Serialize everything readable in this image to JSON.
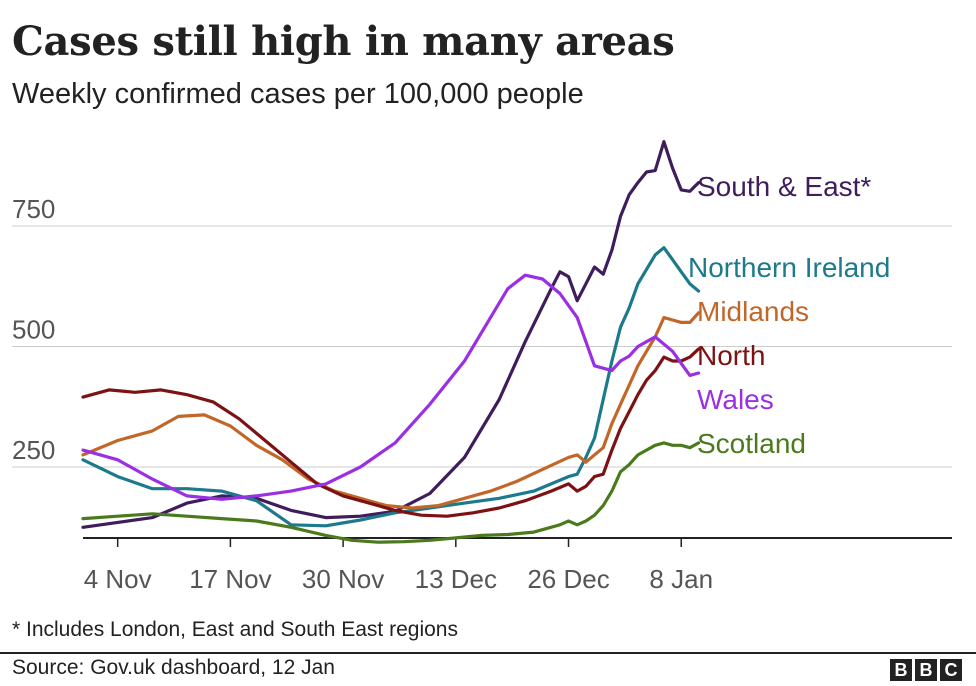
{
  "header": {
    "title": "Cases still high in many areas",
    "subtitle": "Weekly confirmed cases per 100,000 people"
  },
  "footer": {
    "footnote": "* Includes London, East and South East regions",
    "source": "Source: Gov.uk dashboard, 12 Jan",
    "logo_letters": [
      "B",
      "B",
      "C"
    ]
  },
  "chart_data": {
    "type": "line",
    "title": "Cases still high in many areas",
    "subtitle": "Weekly confirmed cases per 100,000 people",
    "xlabel": "",
    "ylabel": "",
    "x_range_days": [
      0,
      69
    ],
    "x_ticks": [
      {
        "day": 4,
        "label": "4 Nov"
      },
      {
        "day": 17,
        "label": "17 Nov"
      },
      {
        "day": 30,
        "label": "30 Nov"
      },
      {
        "day": 43,
        "label": "13 Dec"
      },
      {
        "day": 56,
        "label": "26 Dec"
      },
      {
        "day": 69,
        "label": "8 Jan"
      }
    ],
    "ylim": [
      100,
      950
    ],
    "y_ticks": [
      250,
      500,
      750
    ],
    "grid": true,
    "legend": "direct labels at line ends",
    "series": [
      {
        "name": "South & East*",
        "color": "#3f1d5c",
        "points": [
          [
            0,
            125
          ],
          [
            4,
            135
          ],
          [
            8,
            145
          ],
          [
            12,
            175
          ],
          [
            16,
            190
          ],
          [
            20,
            185
          ],
          [
            24,
            160
          ],
          [
            28,
            145
          ],
          [
            32,
            148
          ],
          [
            36,
            158
          ],
          [
            40,
            195
          ],
          [
            44,
            270
          ],
          [
            48,
            390
          ],
          [
            51,
            510
          ],
          [
            54,
            620
          ],
          [
            55,
            655
          ],
          [
            56,
            645
          ],
          [
            57,
            595
          ],
          [
            58,
            630
          ],
          [
            59,
            665
          ],
          [
            60,
            650
          ],
          [
            61,
            700
          ],
          [
            62,
            770
          ],
          [
            63,
            815
          ],
          [
            64,
            840
          ],
          [
            65,
            862
          ],
          [
            66,
            865
          ],
          [
            67,
            925
          ],
          [
            68,
            870
          ],
          [
            69,
            825
          ],
          [
            70,
            822
          ],
          [
            71,
            840
          ]
        ]
      },
      {
        "name": "Northern Ireland",
        "color": "#1d7a8c",
        "points": [
          [
            0,
            265
          ],
          [
            4,
            230
          ],
          [
            8,
            205
          ],
          [
            12,
            205
          ],
          [
            16,
            200
          ],
          [
            20,
            180
          ],
          [
            24,
            130
          ],
          [
            28,
            128
          ],
          [
            32,
            140
          ],
          [
            36,
            155
          ],
          [
            40,
            165
          ],
          [
            44,
            175
          ],
          [
            48,
            185
          ],
          [
            52,
            200
          ],
          [
            56,
            230
          ],
          [
            57,
            235
          ],
          [
            58,
            270
          ],
          [
            59,
            310
          ],
          [
            60,
            390
          ],
          [
            61,
            470
          ],
          [
            62,
            540
          ],
          [
            63,
            580
          ],
          [
            64,
            630
          ],
          [
            65,
            660
          ],
          [
            66,
            690
          ],
          [
            67,
            705
          ],
          [
            68,
            680
          ],
          [
            69,
            655
          ],
          [
            70,
            630
          ],
          [
            71,
            615
          ]
        ]
      },
      {
        "name": "Midlands",
        "color": "#c1672a",
        "points": [
          [
            0,
            275
          ],
          [
            4,
            305
          ],
          [
            8,
            325
          ],
          [
            11,
            355
          ],
          [
            14,
            358
          ],
          [
            17,
            335
          ],
          [
            20,
            295
          ],
          [
            23,
            265
          ],
          [
            26,
            225
          ],
          [
            29,
            200
          ],
          [
            32,
            185
          ],
          [
            35,
            170
          ],
          [
            38,
            165
          ],
          [
            41,
            170
          ],
          [
            44,
            185
          ],
          [
            47,
            200
          ],
          [
            50,
            220
          ],
          [
            53,
            245
          ],
          [
            56,
            270
          ],
          [
            57,
            275
          ],
          [
            58,
            260
          ],
          [
            59,
            275
          ],
          [
            60,
            290
          ],
          [
            61,
            340
          ],
          [
            62,
            380
          ],
          [
            63,
            420
          ],
          [
            64,
            460
          ],
          [
            65,
            490
          ],
          [
            66,
            520
          ],
          [
            67,
            560
          ],
          [
            68,
            555
          ],
          [
            69,
            550
          ],
          [
            70,
            550
          ],
          [
            71,
            570
          ]
        ]
      },
      {
        "name": "North",
        "color": "#7c1213",
        "points": [
          [
            0,
            395
          ],
          [
            3,
            410
          ],
          [
            6,
            405
          ],
          [
            9,
            410
          ],
          [
            12,
            400
          ],
          [
            15,
            385
          ],
          [
            18,
            350
          ],
          [
            21,
            305
          ],
          [
            24,
            260
          ],
          [
            27,
            215
          ],
          [
            30,
            190
          ],
          [
            33,
            175
          ],
          [
            36,
            160
          ],
          [
            39,
            150
          ],
          [
            42,
            148
          ],
          [
            45,
            155
          ],
          [
            48,
            165
          ],
          [
            51,
            180
          ],
          [
            54,
            200
          ],
          [
            56,
            215
          ],
          [
            57,
            200
          ],
          [
            58,
            210
          ],
          [
            59,
            230
          ],
          [
            60,
            235
          ],
          [
            61,
            285
          ],
          [
            62,
            330
          ],
          [
            63,
            365
          ],
          [
            64,
            400
          ],
          [
            65,
            430
          ],
          [
            66,
            450
          ],
          [
            67,
            478
          ],
          [
            68,
            470
          ],
          [
            69,
            470
          ],
          [
            70,
            478
          ],
          [
            71,
            495
          ]
        ]
      },
      {
        "name": "Wales",
        "color": "#9a2fe4",
        "points": [
          [
            0,
            285
          ],
          [
            4,
            265
          ],
          [
            8,
            225
          ],
          [
            12,
            190
          ],
          [
            16,
            183
          ],
          [
            20,
            190
          ],
          [
            24,
            200
          ],
          [
            28,
            215
          ],
          [
            32,
            250
          ],
          [
            36,
            300
          ],
          [
            40,
            380
          ],
          [
            44,
            470
          ],
          [
            47,
            560
          ],
          [
            49,
            620
          ],
          [
            51,
            648
          ],
          [
            53,
            640
          ],
          [
            55,
            610
          ],
          [
            57,
            560
          ],
          [
            58,
            510
          ],
          [
            59,
            460
          ],
          [
            60,
            455
          ],
          [
            61,
            450
          ],
          [
            62,
            470
          ],
          [
            63,
            480
          ],
          [
            64,
            500
          ],
          [
            65,
            510
          ],
          [
            66,
            520
          ],
          [
            67,
            505
          ],
          [
            68,
            490
          ],
          [
            69,
            465
          ],
          [
            70,
            440
          ],
          [
            71,
            445
          ]
        ]
      },
      {
        "name": "Scotland",
        "color": "#4b7a1d",
        "points": [
          [
            0,
            143
          ],
          [
            4,
            148
          ],
          [
            8,
            153
          ],
          [
            12,
            148
          ],
          [
            16,
            143
          ],
          [
            20,
            138
          ],
          [
            24,
            125
          ],
          [
            28,
            108
          ],
          [
            31,
            98
          ],
          [
            34,
            94
          ],
          [
            37,
            95
          ],
          [
            40,
            98
          ],
          [
            43,
            103
          ],
          [
            46,
            108
          ],
          [
            49,
            110
          ],
          [
            52,
            115
          ],
          [
            55,
            130
          ],
          [
            56,
            138
          ],
          [
            57,
            130
          ],
          [
            58,
            138
          ],
          [
            59,
            150
          ],
          [
            60,
            170
          ],
          [
            61,
            200
          ],
          [
            62,
            240
          ],
          [
            63,
            255
          ],
          [
            64,
            275
          ],
          [
            65,
            285
          ],
          [
            66,
            295
          ],
          [
            67,
            300
          ],
          [
            68,
            295
          ],
          [
            69,
            295
          ],
          [
            70,
            290
          ],
          [
            71,
            300
          ]
        ]
      }
    ]
  }
}
